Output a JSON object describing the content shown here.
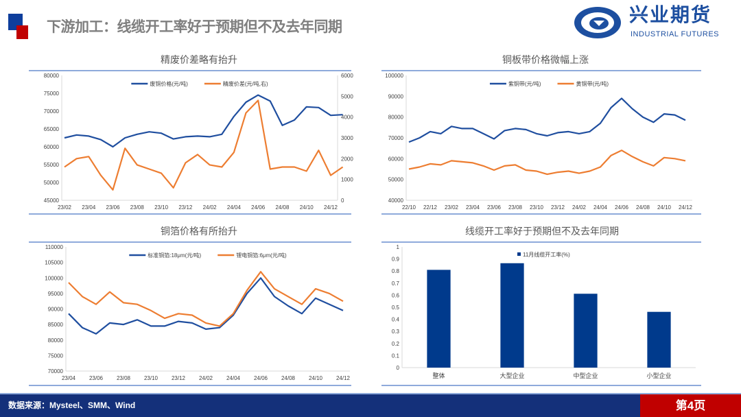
{
  "header": {
    "title": "下游加工：线缆开工率好于预期但不及去年同期",
    "logo_cn": "兴业期货",
    "logo_en": "INDUSTRIAL FUTURES"
  },
  "footer": {
    "source": "数据来源：Mysteel、SMM、Wind",
    "page": "第4页"
  },
  "colors": {
    "blue": "#1f4e9f",
    "orange": "#ed7d31",
    "bar": "#003a8c"
  },
  "chart_data": [
    {
      "type": "line",
      "title": "精废价差略有抬升",
      "x_ticks": [
        "23/02",
        "23/04",
        "23/06",
        "23/08",
        "23/10",
        "23/12",
        "24/02",
        "24/04",
        "24/06",
        "24/08",
        "24/10",
        "24/12"
      ],
      "x_start": "23/02",
      "x_step_months": 1,
      "ylim": [
        45000,
        80000
      ],
      "yticks": [
        45000,
        50000,
        55000,
        60000,
        65000,
        70000,
        75000,
        80000
      ],
      "ylim_right": [
        0,
        6000
      ],
      "yticks_right": [
        0,
        1000,
        2000,
        3000,
        4000,
        5000,
        6000
      ],
      "series": [
        {
          "name": "废铜价格(元/吨)",
          "axis": "left",
          "color": "#1f4e9f",
          "values": [
            62500,
            63300,
            63000,
            62000,
            60000,
            62500,
            63500,
            64200,
            63800,
            62200,
            62800,
            63000,
            62800,
            63500,
            68500,
            72500,
            74500,
            72800,
            66000,
            67500,
            71200,
            71000,
            68800,
            69000
          ]
        },
        {
          "name": "精废价差(元/吨,右)",
          "axis": "right",
          "color": "#ed7d31",
          "values": [
            1600,
            2000,
            2100,
            1200,
            500,
            2500,
            1700,
            1500,
            1300,
            600,
            1800,
            2200,
            1700,
            1600,
            2300,
            4200,
            4800,
            1500,
            1600,
            1600,
            1400,
            2400,
            1200,
            1600
          ]
        }
      ]
    },
    {
      "type": "line",
      "title": "铜板带价格微幅上涨",
      "x_ticks": [
        "22/10",
        "22/12",
        "23/02",
        "23/04",
        "23/06",
        "23/08",
        "23/10",
        "23/12",
        "24/02",
        "24/04",
        "24/06",
        "24/08",
        "24/10",
        "24/12"
      ],
      "x_start": "22/10",
      "x_step_months": 1,
      "ylim": [
        40000,
        100000
      ],
      "yticks": [
        40000,
        50000,
        60000,
        70000,
        80000,
        90000,
        100000
      ],
      "series": [
        {
          "name": "紫铜带(元/吨)",
          "axis": "left",
          "color": "#1f4e9f",
          "values": [
            68000,
            70000,
            73000,
            72000,
            75500,
            74500,
            74500,
            72000,
            69500,
            73500,
            74500,
            74000,
            72000,
            71000,
            72500,
            73000,
            72000,
            73000,
            77000,
            84500,
            89000,
            84000,
            80000,
            77500,
            81500,
            81000,
            78500
          ]
        },
        {
          "name": "黄铜带(元/吨)",
          "axis": "left",
          "color": "#ed7d31",
          "values": [
            55000,
            56000,
            57500,
            57000,
            59000,
            58500,
            58000,
            56500,
            54500,
            56500,
            57000,
            54500,
            54000,
            52500,
            53500,
            54000,
            53000,
            54000,
            56000,
            61500,
            64000,
            61000,
            58500,
            56500,
            60500,
            60000,
            59000
          ]
        }
      ]
    },
    {
      "type": "line",
      "title": "铜箔价格有所抬升",
      "x_ticks": [
        "23/04",
        "23/06",
        "23/08",
        "23/10",
        "23/12",
        "24/02",
        "24/04",
        "24/06",
        "24/08",
        "24/10",
        "24/12"
      ],
      "x_start": "23/04",
      "x_step_months": 1,
      "ylim": [
        70000,
        110000
      ],
      "yticks": [
        70000,
        75000,
        80000,
        85000,
        90000,
        95000,
        100000,
        105000,
        110000
      ],
      "series": [
        {
          "name": "标准铜箔:18μm(元/吨)",
          "axis": "left",
          "color": "#1f4e9f",
          "values": [
            88500,
            84000,
            82000,
            85500,
            85000,
            86500,
            84500,
            84500,
            86000,
            85500,
            83500,
            84000,
            88000,
            95000,
            100000,
            94000,
            91000,
            88500,
            93500,
            91500,
            89500
          ]
        },
        {
          "name": "锂电铜箔:6μm(元/吨)",
          "axis": "left",
          "color": "#ed7d31",
          "values": [
            98500,
            94000,
            91500,
            95500,
            92000,
            91500,
            89500,
            87000,
            88500,
            88000,
            85500,
            84500,
            88500,
            96000,
            102000,
            96500,
            94000,
            91500,
            96500,
            95000,
            92500
          ]
        }
      ]
    },
    {
      "type": "bar",
      "title": "线缆开工率好于预期但不及去年同期",
      "categories": [
        "整体",
        "大型企业",
        "中型企业",
        "小型企业"
      ],
      "ylim": [
        0,
        1
      ],
      "yticks": [
        "0",
        "0.1",
        "0.2",
        "0.3",
        "0.4",
        "0.5",
        "0.6",
        "0.7",
        "0.8",
        "0.9",
        "1"
      ],
      "series": [
        {
          "name": "11月线缆开工率(%)",
          "color": "#003a8c",
          "values": [
            0.81,
            0.865,
            0.612,
            0.462
          ]
        }
      ]
    }
  ]
}
